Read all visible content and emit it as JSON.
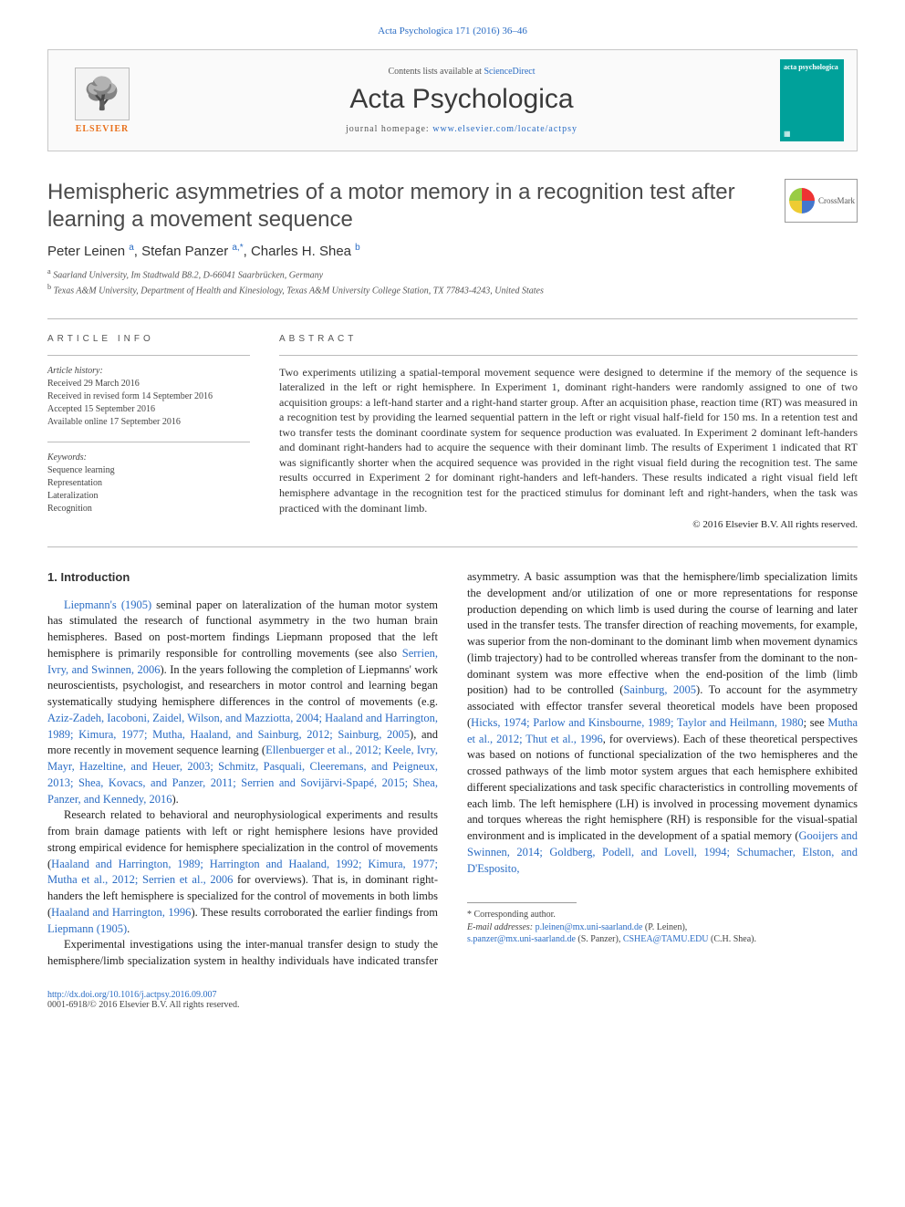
{
  "colors": {
    "link": "#2a6cc4",
    "accent_orange": "#e9711c",
    "cover_teal": "#00a19a",
    "text": "#222222",
    "rule": "#bbbbbb"
  },
  "header": {
    "citation": "Acta Psychologica 171 (2016) 36–46",
    "contents_prefix": "Contents lists available at ",
    "contents_link": "ScienceDirect",
    "journal_name": "Acta Psychologica",
    "homepage_prefix": "journal homepage: ",
    "homepage_url": "www.elsevier.com/locate/actpsy",
    "publisher": "ELSEVIER",
    "cover_text_top": "acta\npsychologica"
  },
  "crossmark": "CrossMark",
  "title": "Hemispheric asymmetries of a motor memory in a recognition test after learning a movement sequence",
  "authors_html": "Peter Leinen <sup>a</sup>, Stefan Panzer <sup>a,*</sup>, Charles H. Shea <sup>b</sup>",
  "affiliations": [
    "a  Saarland University, Im Stadtwald B8.2, D-66041 Saarbrücken, Germany",
    "b  Texas A&M University, Department of Health and Kinesiology, Texas A&M University College Station, TX 77843-4243, United States"
  ],
  "article_info_label": "article info",
  "abstract_label": "abstract",
  "history": {
    "label": "Article history:",
    "lines": [
      "Received 29 March 2016",
      "Received in revised form 14 September 2016",
      "Accepted 15 September 2016",
      "Available online 17 September 2016"
    ]
  },
  "keywords": {
    "label": "Keywords:",
    "items": [
      "Sequence learning",
      "Representation",
      "Lateralization",
      "Recognition"
    ]
  },
  "abstract": "Two experiments utilizing a spatial-temporal movement sequence were designed to determine if the memory of the sequence is lateralized in the left or right hemisphere. In Experiment 1, dominant right-handers were randomly assigned to one of two acquisition groups: a left-hand starter and a right-hand starter group. After an acquisition phase, reaction time (RT) was measured in a recognition test by providing the learned sequential pattern in the left or right visual half-field for 150 ms. In a retention test and two transfer tests the dominant coordinate system for sequence production was evaluated. In Experiment 2 dominant left-handers and dominant right-handers had to acquire the sequence with their dominant limb. The results of Experiment 1 indicated that RT was significantly shorter when the acquired sequence was provided in the right visual field during the recognition test. The same results occurred in Experiment 2 for dominant right-handers and left-handers. These results indicated a right visual field left hemisphere advantage in the recognition test for the practiced stimulus for dominant left and right-handers, when the task was practiced with the dominant limb.",
  "copyright": "© 2016 Elsevier B.V. All rights reserved.",
  "intro_heading": "1. Introduction",
  "paragraphs": {
    "p1_a": "Liepmann's (1905)",
    "p1_b": " seminal paper on lateralization of the human motor system has stimulated the research of functional asymmetry in the two human brain hemispheres. Based on post-mortem findings Liepmann proposed that the left hemisphere is primarily responsible for controlling movements (see also ",
    "p1_c": "Serrien, Ivry, and Swinnen, 2006",
    "p1_d": "). In the years following the completion of Liepmanns' work neuroscientists, psychologist, and researchers in motor control and learning began systematically studying hemisphere differences in the control of movements (e.g. ",
    "p1_e": "Aziz-Zadeh, Iacoboni, Zaidel, Wilson, and Mazziotta, 2004; Haaland and Harrington, 1989; Kimura, 1977; Mutha, Haaland, and Sainburg, 2012; Sainburg, 2005",
    "p1_f": "), and more recently in movement sequence learning (",
    "p1_g": "Ellenbuerger et al., 2012; Keele, Ivry, Mayr, Hazeltine, and Heuer, 2003; Schmitz, Pasquali, Cleeremans, and Peigneux, 2013; Shea, Kovacs, and Panzer, 2011; Serrien and Sovijärvi-Spapé, 2015; Shea, Panzer, and Kennedy, 2016",
    "p1_h": ").",
    "p2_a": "Research related to behavioral and neurophysiological experiments and results from brain damage patients with left or right hemisphere lesions have provided strong empirical evidence for hemisphere specialization in the control of movements (",
    "p2_b": "Haaland and Harrington, 1989; Harrington and Haaland, 1992; Kimura, 1977; Mutha et al., 2012; Serrien et al., 2006",
    "p2_c": " for overviews). That is, in dominant right-handers the left hemisphere is specialized for the control of movements in both limbs (",
    "p2_d": "Haaland and Harrington, 1996",
    "p2_e": "). These results corroborated the earlier findings from ",
    "p2_f": "Liepmann (1905)",
    "p2_g": ".",
    "p3_a": "Experimental investigations using the inter-manual transfer design to study the hemisphere/limb specialization system in healthy individuals have indicated transfer asymmetry. A basic assumption was that the hemisphere/limb specialization limits the development and/or utilization of one or more representations for response production depending on which limb is used during the course of learning and later used in the transfer tests. The transfer direction of reaching movements, for example, was superior from the non-dominant to the dominant limb when movement dynamics (limb trajectory) had to be controlled whereas transfer from the dominant to the non-dominant system was more effective when the end-position of the limb (limb position) had to be controlled (",
    "p3_b": "Sainburg, 2005",
    "p3_c": "). To account for the asymmetry associated with effector transfer several theoretical models have been proposed (",
    "p3_d": "Hicks, 1974; Parlow and Kinsbourne, 1989; Taylor and Heilmann, 1980",
    "p3_e": "; see ",
    "p3_f": "Mutha et al., 2012; Thut et al., 1996",
    "p3_g": ", for overviews). Each of these theoretical perspectives was based on notions of functional specialization of the two hemispheres and the crossed pathways of the limb motor system argues that each hemisphere exhibited different specializations and task specific characteristics in controlling movements of each limb. The left hemisphere (LH) is involved in processing movement dynamics and torques whereas the right hemisphere (RH) is responsible for the visual-spatial environment and is implicated in the development of a spatial memory (",
    "p3_h": "Gooijers and Swinnen, 2014; Goldberg, Podell, and Lovell, 1994; Schumacher, Elston, and D'Esposito,"
  },
  "footnotes": {
    "corr": "* Corresponding author.",
    "emails_label": "E-mail addresses: ",
    "e1": "p.leinen@mx.uni-saarland.de",
    "e1_who": " (P. Leinen),",
    "e2": "s.panzer@mx.uni-saarland.de",
    "e2_who": " (S. Panzer), ",
    "e3": "CSHEA@TAMU.EDU",
    "e3_who": " (C.H. Shea)."
  },
  "footer": {
    "doi": "http://dx.doi.org/10.1016/j.actpsy.2016.09.007",
    "issn_line": "0001-6918/© 2016 Elsevier B.V. All rights reserved."
  }
}
